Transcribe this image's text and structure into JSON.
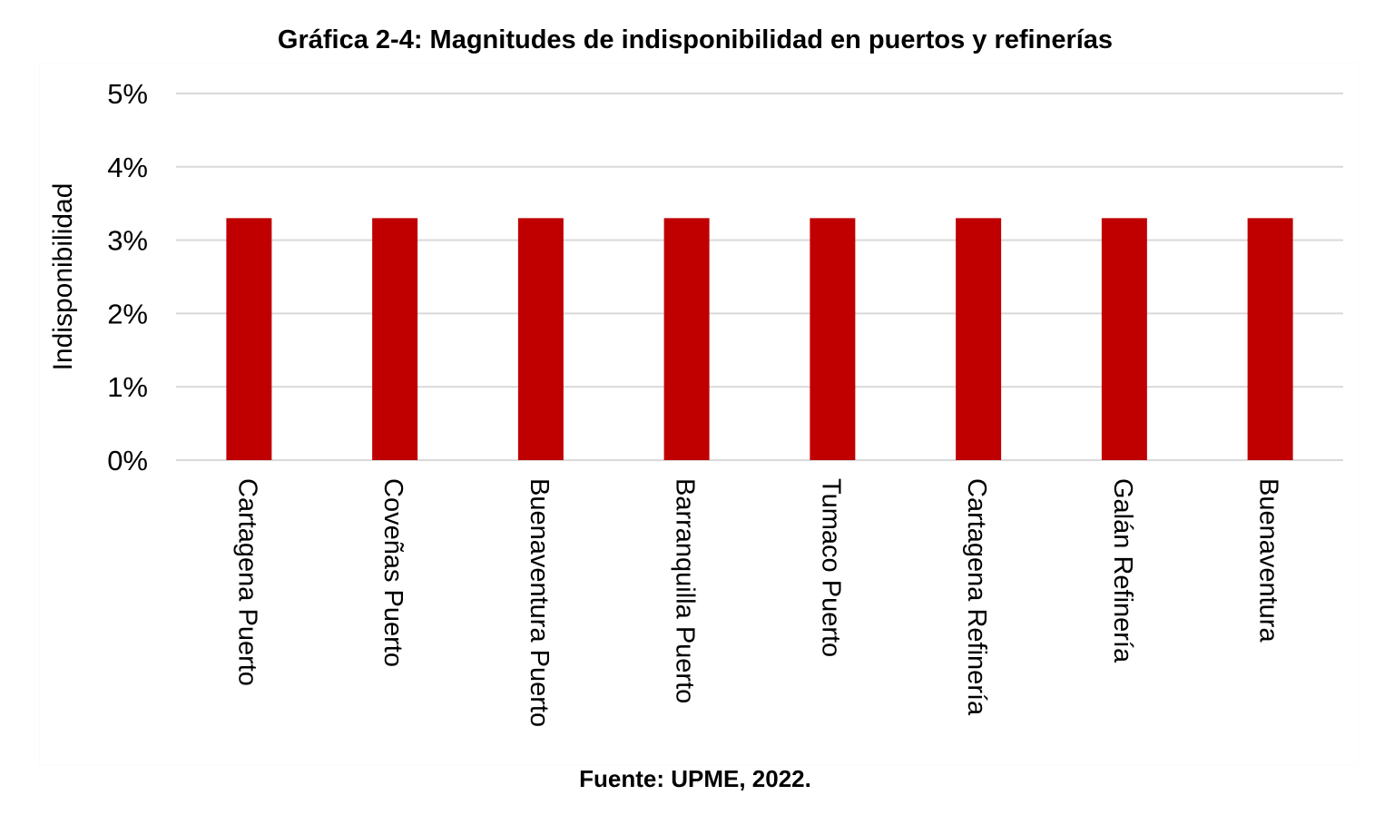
{
  "chart_data": {
    "type": "bar",
    "title": "Gráfica 2-4: Magnitudes de indisponibilidad en puertos y refinerías",
    "ylabel": "Indisponibilidad",
    "xlabel": "",
    "categories": [
      "Cartagena Puerto",
      "Coveñas Puerto",
      "Buenaventura Puerto",
      "Barranquilla Puerto",
      "Tumaco Puerto",
      "Cartagena Refinería",
      "Galán Refinería",
      "Buenaventura"
    ],
    "values": [
      3.3,
      3.3,
      3.3,
      3.3,
      3.3,
      3.3,
      3.3,
      3.3
    ],
    "ylim": [
      0,
      5
    ],
    "yticks": [
      "0%",
      "1%",
      "2%",
      "3%",
      "4%",
      "5%"
    ],
    "grid": true,
    "bar_color": "#C00000",
    "grid_color": "#D9D9D9",
    "source": "Fuente: UPME, 2022."
  }
}
